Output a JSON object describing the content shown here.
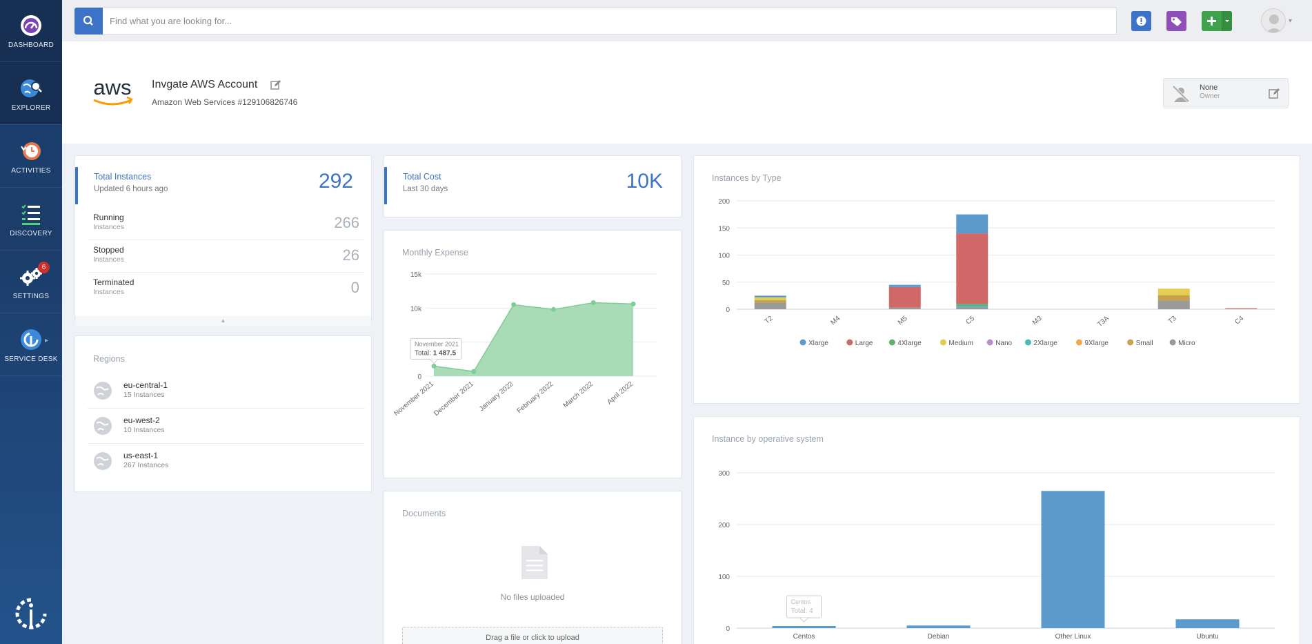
{
  "sidebar": {
    "items": [
      {
        "label": "DASHBOARD",
        "icon": "dashboard-gauge-icon"
      },
      {
        "label": "EXPLORER",
        "icon": "explorer-globe-icon"
      },
      {
        "label": "ACTIVITIES",
        "icon": "activities-clock-icon"
      },
      {
        "label": "DISCOVERY",
        "icon": "discovery-list-icon"
      },
      {
        "label": "SETTINGS",
        "icon": "settings-gears-icon",
        "badge": "6"
      },
      {
        "label": "SERVICE DESK",
        "icon": "service-desk-icon"
      }
    ]
  },
  "topbar": {
    "search_placeholder": "Find what you are looking for..."
  },
  "account": {
    "logo_text": "aws",
    "title": "Invgate AWS Account",
    "subtitle": "Amazon Web Services #129106826746",
    "owner_name": "None",
    "owner_role": "Owner"
  },
  "total_instances": {
    "label": "Total Instances",
    "updated": "Updated 6 hours ago",
    "value": "292",
    "rows": [
      {
        "label": "Running",
        "sub": "Instances",
        "value": "266"
      },
      {
        "label": "Stopped",
        "sub": "Instances",
        "value": "26"
      },
      {
        "label": "Terminated",
        "sub": "Instances",
        "value": "0"
      }
    ]
  },
  "regions": {
    "title": "Regions",
    "items": [
      {
        "name": "eu-central-1",
        "count": "15 Instances"
      },
      {
        "name": "eu-west-2",
        "count": "10 Instances"
      },
      {
        "name": "us-east-1",
        "count": "267 Instances"
      }
    ]
  },
  "total_cost": {
    "label": "Total Cost",
    "sub": "Last 30 days",
    "value": "10K"
  },
  "documents": {
    "title": "Documents",
    "empty": "No files uploaded",
    "dropzone": "Drag a file or click to upload"
  },
  "colors": {
    "accent": "#3d73c6",
    "area_fill": "#a8dbb6",
    "area_line": "#7fcc95"
  },
  "chart_data": [
    {
      "id": "monthly-expense",
      "type": "area",
      "title": "Monthly Expense",
      "x": [
        "November 2021",
        "December 2021",
        "January 2022",
        "February 2022",
        "March 2022",
        "April 2022"
      ],
      "values": [
        1487.5,
        700,
        10500,
        9800,
        10800,
        10600
      ],
      "yticks": [
        "0",
        "5k",
        "10k",
        "15k"
      ],
      "ylim": [
        0,
        15000
      ],
      "tooltip": {
        "title": "November 2021",
        "label": "Total:",
        "value": "1 487.5"
      }
    },
    {
      "id": "instances-by-type",
      "type": "bar",
      "stacked": true,
      "title": "Instances by Type",
      "categories": [
        "T2",
        "M4",
        "M5",
        "C5",
        "M3",
        "T3A",
        "T3",
        "C4"
      ],
      "yticks": [
        "0",
        "50",
        "100",
        "150",
        "200"
      ],
      "ylim": [
        0,
        200
      ],
      "series": [
        {
          "name": "Xlarge",
          "color": "#5b9acb",
          "values": [
            3,
            0,
            4,
            35,
            0,
            0,
            0,
            0
          ]
        },
        {
          "name": "Large",
          "color": "#d06868",
          "values": [
            0,
            0,
            38,
            130,
            0,
            0,
            0,
            1
          ]
        },
        {
          "name": "4Xlarge",
          "color": "#5fb36a",
          "values": [
            0,
            0,
            0,
            3,
            0,
            0,
            0,
            0
          ]
        },
        {
          "name": "Medium",
          "color": "#e2cf52",
          "values": [
            5,
            0,
            0,
            0,
            0,
            0,
            12,
            0
          ]
        },
        {
          "name": "Nano",
          "color": "#b98fc9",
          "values": [
            0,
            0,
            0,
            0,
            0,
            0,
            0,
            0
          ]
        },
        {
          "name": "2Xlarge",
          "color": "#4fb7b7",
          "values": [
            0,
            0,
            0,
            3,
            0,
            0,
            0,
            0
          ]
        },
        {
          "name": "9Xlarge",
          "color": "#f0a94a",
          "values": [
            0,
            0,
            0,
            0,
            0,
            0,
            0,
            0
          ]
        },
        {
          "name": "Small",
          "color": "#c7a24b",
          "values": [
            5,
            0,
            0,
            0,
            0,
            0,
            10,
            0
          ]
        },
        {
          "name": "Micro",
          "color": "#9a9a9a",
          "values": [
            12,
            0,
            3,
            4,
            0,
            0,
            16,
            1
          ]
        }
      ]
    },
    {
      "id": "instance-by-os",
      "type": "bar",
      "title": "Instance by operative system",
      "categories": [
        "Centos",
        "Debian",
        "Other Linux",
        "Ubuntu"
      ],
      "values": [
        4,
        5,
        265,
        17
      ],
      "yticks": [
        "0",
        "100",
        "200",
        "300"
      ],
      "ylim": [
        0,
        300
      ],
      "color": "#5b9acb",
      "tooltip": {
        "title": "Centos",
        "label": "Total:",
        "value": "4"
      }
    }
  ]
}
